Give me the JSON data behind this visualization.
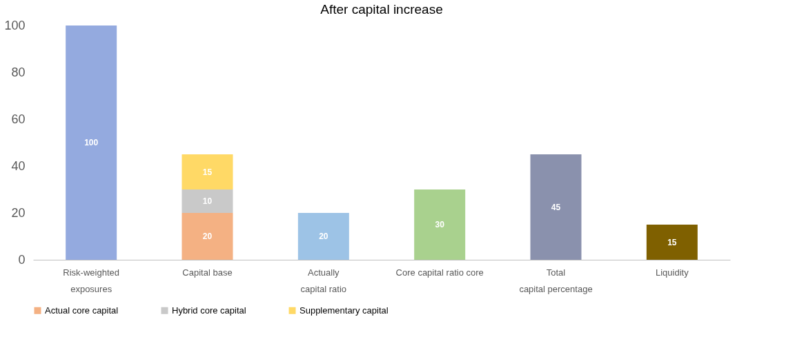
{
  "chart_data": {
    "type": "bar",
    "title": "After capital increase",
    "categories": [
      "Risk-weighted\nexposures",
      "Capital base",
      "Actually\ncapital ratio",
      "Core capital ratio core",
      "Total\ncapital percentage",
      "Liquidity"
    ],
    "series": [
      {
        "colors": [
          "#94aadf",
          null,
          "#9dc3e6",
          "#a9d18e",
          "#8a91ad",
          "#7f6000"
        ],
        "values": [
          100,
          null,
          20,
          30,
          45,
          15
        ]
      },
      {
        "name": "Actual core capital",
        "color": "#f4b183",
        "values": [
          null,
          20,
          null,
          null,
          null,
          null
        ]
      },
      {
        "name": "Hybrid core capital",
        "color": "#c9c9c9",
        "values": [
          null,
          10,
          null,
          null,
          null,
          null
        ]
      },
      {
        "name": "Supplementary capital",
        "color": "#ffd966",
        "values": [
          null,
          15,
          null,
          null,
          null,
          null
        ]
      }
    ],
    "stacked": true,
    "data_labels": true,
    "ylim": [
      0,
      100
    ],
    "yticks": [
      0,
      20,
      40,
      60,
      80,
      100
    ],
    "grid": false,
    "legend": "bottom"
  }
}
